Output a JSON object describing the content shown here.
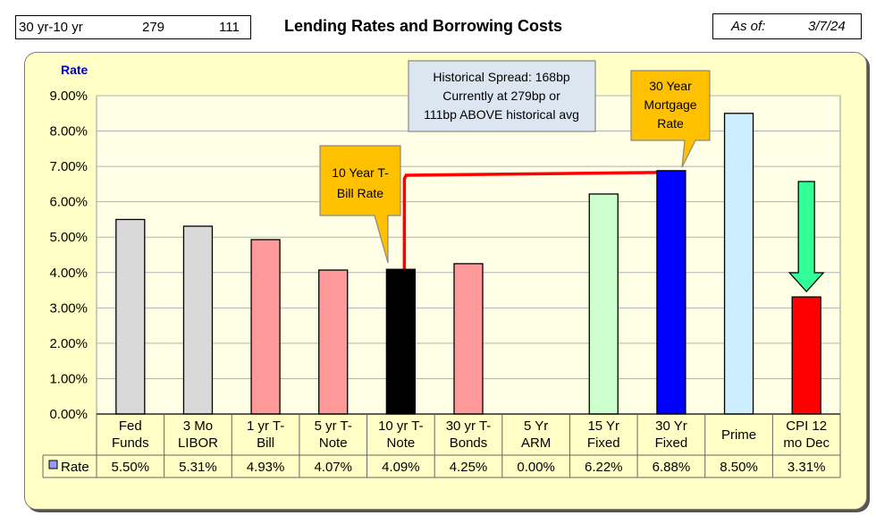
{
  "header": {
    "spread_label": "30 yr-10 yr",
    "spread_current": "279",
    "spread_above": "111",
    "title": "Lending Rates and Borrowing Costs",
    "asof_label": "As of:",
    "asof_date": "3/7/24"
  },
  "chart_data": {
    "type": "bar",
    "title": "Lending Rates and Borrowing Costs",
    "ylabel": "Rate",
    "ylim": [
      0,
      9
    ],
    "yticks": [
      "0.00%",
      "1.00%",
      "2.00%",
      "3.00%",
      "4.00%",
      "5.00%",
      "6.00%",
      "7.00%",
      "8.00%",
      "9.00%"
    ],
    "categories": [
      [
        "Fed",
        "Funds"
      ],
      [
        "3 Mo",
        "LIBOR"
      ],
      [
        "1 yr  T-",
        "Bill"
      ],
      [
        "5 yr T-",
        "Note"
      ],
      [
        "10 yr T-",
        "Note"
      ],
      [
        "30 yr T-",
        "Bonds"
      ],
      [
        "5 Yr",
        "ARM"
      ],
      [
        "15 Yr",
        "Fixed"
      ],
      [
        "30 Yr",
        "Fixed"
      ],
      [
        "Prime"
      ],
      [
        "CPI 12",
        "mo Dec"
      ]
    ],
    "series": [
      {
        "name": "Rate",
        "values": [
          5.5,
          5.31,
          4.93,
          4.07,
          4.09,
          4.25,
          0.0,
          6.22,
          6.88,
          8.5,
          3.31
        ],
        "labels": [
          "5.50%",
          "5.31%",
          "4.93%",
          "4.07%",
          "4.09%",
          "4.25%",
          "0.00%",
          "6.22%",
          "6.88%",
          "8.50%",
          "3.31%"
        ],
        "colors": [
          "#d9d9d9",
          "#d9d9d9",
          "#ff9999",
          "#ff9999",
          "#000000",
          "#ff9999",
          "#ff9999",
          "#ccffcc",
          "#0000ff",
          "#cceeff",
          "#ff0000"
        ]
      }
    ],
    "data_table": true,
    "legend_swatch_color": "#9999ff",
    "annotations": {
      "spread": [
        "Historical Spread: 168bp",
        "Currently at 279bp  or",
        "111bp ABOVE historical avg"
      ],
      "ten_year": [
        "10 Year T-",
        "Bill Rate"
      ],
      "thirty_year": [
        "30 Year",
        "Mortgage",
        "Rate"
      ]
    },
    "arrow_color": "#33ff99",
    "connector_color": "#ff0000",
    "callout_color": "#ffc000"
  }
}
